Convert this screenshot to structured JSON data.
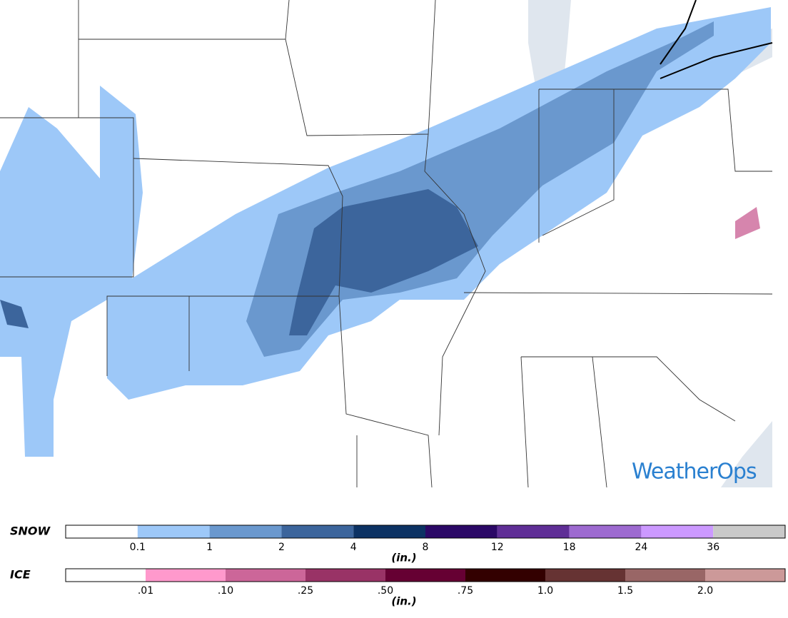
{
  "map": {
    "logo": "WeatherOps"
  },
  "legend": {
    "snow": {
      "label": "SNOW",
      "unit": "(in.)",
      "colors": [
        "#ffffff",
        "#9dc8f8",
        "#6a98ce",
        "#3c659c",
        "#0c3263",
        "#2b0866",
        "#5f2e96",
        "#9d6ad0",
        "#cc99ff",
        "#c9c9c9"
      ],
      "ticks": [
        "0.1",
        "1",
        "2",
        "4",
        "8",
        "12",
        "18",
        "24",
        "36"
      ]
    },
    "ice": {
      "label": "ICE",
      "unit": "(in.)",
      "colors": [
        "#ffffff",
        "#ff99cc",
        "#cc6699",
        "#993366",
        "#660033",
        "#330000",
        "#663333",
        "#996666",
        "#cc9999"
      ],
      "ticks": [
        ".01",
        ".10",
        ".25",
        ".50",
        ".75",
        "1.0",
        "1.5",
        "2.0"
      ]
    }
  }
}
